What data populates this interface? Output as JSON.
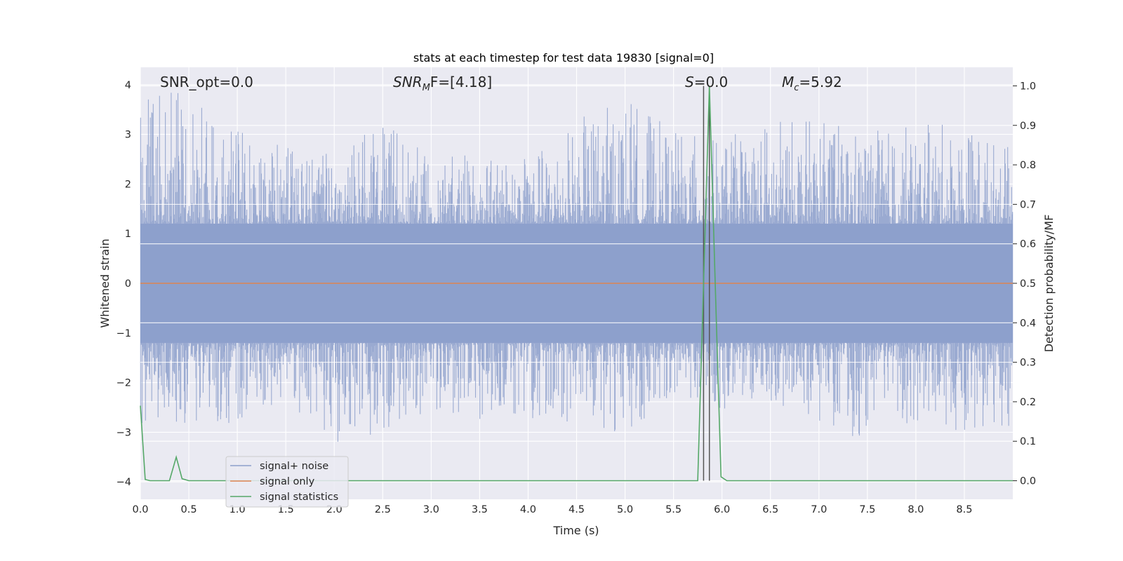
{
  "chart_data": {
    "type": "line",
    "title": "stats at each timestep for test data 19830 [signal=0]",
    "xlabel": "Time (s)",
    "ylabel": "Whitened strain",
    "y2label": "Detection probability/MF",
    "xlim": [
      0,
      9
    ],
    "ylim": [
      -4.35,
      4.35
    ],
    "y2lim": [
      -0.047,
      1.047
    ],
    "grid": true,
    "legend_position": "lower-left",
    "xticks": [
      "0.0",
      "0.5",
      "1.0",
      "1.5",
      "2.0",
      "2.5",
      "3.0",
      "3.5",
      "4.0",
      "4.5",
      "5.0",
      "5.5",
      "6.0",
      "6.5",
      "7.0",
      "7.5",
      "8.0",
      "8.5"
    ],
    "yticks": [
      "4",
      "3",
      "2",
      "1",
      "0",
      "−1",
      "−2",
      "−3",
      "−4"
    ],
    "y2ticks": [
      "1.0",
      "0.9",
      "0.8",
      "0.7",
      "0.6",
      "0.5",
      "0.4",
      "0.3",
      "0.2",
      "0.1",
      "0.0"
    ],
    "annotations": {
      "snr_opt": "SNR_opt=0.0",
      "snr_mf_name": "SNR",
      "snr_mf_sub": "M",
      "snr_mf_rest": "F=[4.18]",
      "s_name": "S",
      "s_rest": "=0.0",
      "mc_name": "M",
      "mc_sub": "c",
      "mc_rest": "=5.92"
    },
    "vlines_x": [
      5.81,
      5.87
    ],
    "series": [
      {
        "name": "signal+ noise",
        "color": "#8c9fcb",
        "description_note": "noise",
        "envelope": {
          "x": [
            0.0,
            0.5,
            1.0,
            1.5,
            2.0,
            2.5,
            3.0,
            3.5,
            4.0,
            4.5,
            5.0,
            5.5,
            6.0,
            6.5,
            7.0,
            7.5,
            8.0,
            8.5,
            9.0
          ],
          "upper": [
            3.9,
            3.85,
            3.1,
            2.85,
            2.6,
            3.3,
            2.55,
            2.6,
            2.5,
            3.3,
            3.8,
            3.1,
            2.9,
            3.35,
            3.3,
            3.1,
            3.2,
            3.25,
            2.7
          ],
          "lower": [
            -3.2,
            -2.9,
            -2.8,
            -2.4,
            -3.35,
            -3.05,
            -2.65,
            -2.8,
            -2.75,
            -2.8,
            -3.1,
            -2.2,
            -2.6,
            -2.5,
            -2.8,
            -3.2,
            -2.8,
            -3.0,
            -2.9
          ]
        }
      },
      {
        "name": "signal only",
        "color": "#dd8452",
        "x": [
          0,
          9
        ],
        "y": [
          0,
          0
        ]
      },
      {
        "name": "signal statistics",
        "color": "#55a868",
        "axis": "right",
        "x": [
          0.0,
          0.05,
          0.1,
          0.3,
          0.37,
          0.43,
          0.5,
          5.75,
          5.81,
          5.87,
          5.93,
          5.99,
          6.05,
          9.0
        ],
        "y": [
          0.19,
          0.003,
          0.0,
          0.0,
          0.06,
          0.005,
          0.0,
          0.0,
          0.5,
          1.0,
          0.5,
          0.01,
          0.0,
          0.0
        ]
      }
    ]
  }
}
